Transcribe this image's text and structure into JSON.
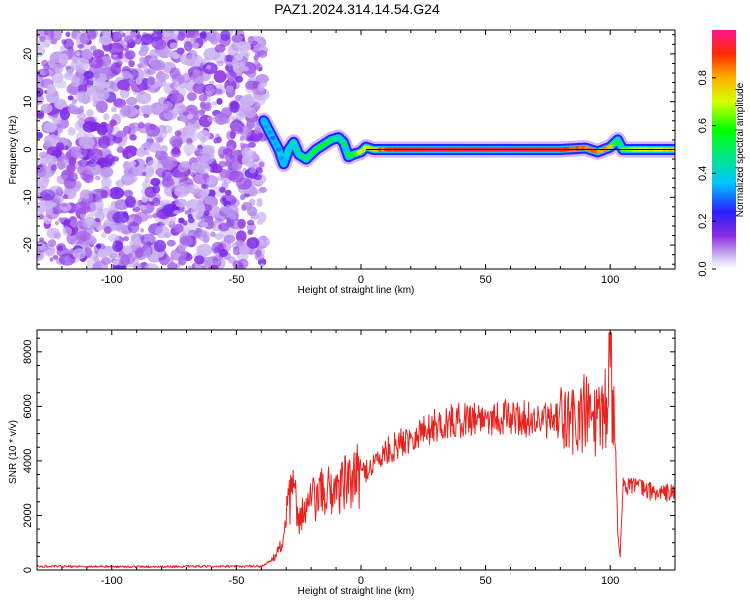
{
  "title": "PAZ1.2024.314.14.54.G24",
  "chart_data": [
    {
      "type": "heatmap",
      "xlabel": "Height of straight line (km)",
      "ylabel": "Frequency (Hz)",
      "xlim": [
        -130,
        126
      ],
      "ylim": [
        -25,
        25
      ],
      "xticks": [
        -100,
        -50,
        0,
        50,
        100
      ],
      "xtick_labels": [
        "-100",
        "-50",
        "0",
        "50",
        "100"
      ],
      "yticks": [
        -20,
        -10,
        0,
        10,
        20
      ],
      "ytick_labels": [
        "-20",
        "-10",
        "0",
        "10",
        "20"
      ],
      "noise_region_km": [
        -130,
        -39
      ],
      "signal_track": {
        "x": [
          -39,
          -36,
          -33,
          -31,
          -29,
          -27,
          -25,
          -22,
          -20,
          -18,
          -15,
          -12,
          -9,
          -7,
          -5,
          -3,
          0,
          2,
          5,
          10,
          20,
          40,
          60,
          80,
          90,
          95,
          100,
          103,
          105,
          110,
          120,
          126
        ],
        "y": [
          6,
          3,
          0,
          -3,
          0,
          1.5,
          -1,
          -2,
          -1,
          0,
          1,
          2,
          2.5,
          1.5,
          -1.5,
          -1,
          -0.5,
          0.5,
          0,
          0,
          0,
          0,
          0,
          0,
          0.3,
          -0.5,
          0.5,
          2,
          0,
          0,
          0,
          0
        ],
        "amplitude": [
          0.35,
          0.3,
          0.3,
          0.35,
          0.4,
          0.45,
          0.45,
          0.5,
          0.5,
          0.55,
          0.55,
          0.5,
          0.45,
          0.5,
          0.55,
          0.6,
          0.7,
          0.7,
          0.75,
          0.9,
          0.95,
          0.95,
          0.95,
          0.9,
          0.85,
          0.85,
          0.8,
          0.45,
          0.6,
          0.7,
          0.75,
          0.75
        ]
      },
      "colorbar": {
        "label": "Normalized spectral amplitude",
        "range": [
          0,
          1
        ],
        "ticks": [
          0.0,
          0.2,
          0.4,
          0.6,
          0.8
        ],
        "tick_labels": [
          "0.0",
          "0.2",
          "0.4",
          "0.6",
          "0.8"
        ]
      }
    },
    {
      "type": "line",
      "xlabel": "Height of straight line (km)",
      "ylabel": "SNR (10 * v/v)",
      "xlim": [
        -130,
        126
      ],
      "ylim": [
        0,
        8800
      ],
      "xticks": [
        -100,
        -50,
        0,
        50,
        100
      ],
      "xtick_labels": [
        "-100",
        "-50",
        "0",
        "50",
        "100"
      ],
      "yticks": [
        0,
        2000,
        4000,
        6000,
        8000
      ],
      "ytick_labels": [
        "0",
        "2000",
        "4000",
        "6000",
        "8000"
      ],
      "color": "#e8231f",
      "series": [
        {
          "x": [
            -130,
            -110,
            -90,
            -70,
            -50,
            -40,
            -36,
            -32,
            -29,
            -27,
            -25,
            -23,
            -20,
            -15,
            -10,
            -5,
            0,
            5,
            10,
            15,
            20,
            25,
            30,
            35,
            40,
            45,
            50,
            55,
            60,
            65,
            70,
            75,
            80,
            85,
            88,
            91,
            94,
            96,
            98,
            100,
            101,
            102,
            103,
            104,
            105,
            108,
            112,
            116,
            120,
            124,
            126
          ],
          "y": [
            130,
            130,
            120,
            130,
            130,
            140,
            300,
            900,
            2400,
            2900,
            2000,
            2100,
            2500,
            2800,
            3000,
            3200,
            3500,
            3900,
            4300,
            4600,
            4900,
            5100,
            5300,
            5400,
            5500,
            5600,
            5600,
            5600,
            5600,
            5550,
            5500,
            5450,
            5450,
            5400,
            5600,
            5700,
            5500,
            5200,
            5800,
            6200,
            6000,
            5000,
            1500,
            500,
            3000,
            3200,
            3000,
            2900,
            2800,
            2850,
            2800
          ]
        }
      ]
    }
  ]
}
